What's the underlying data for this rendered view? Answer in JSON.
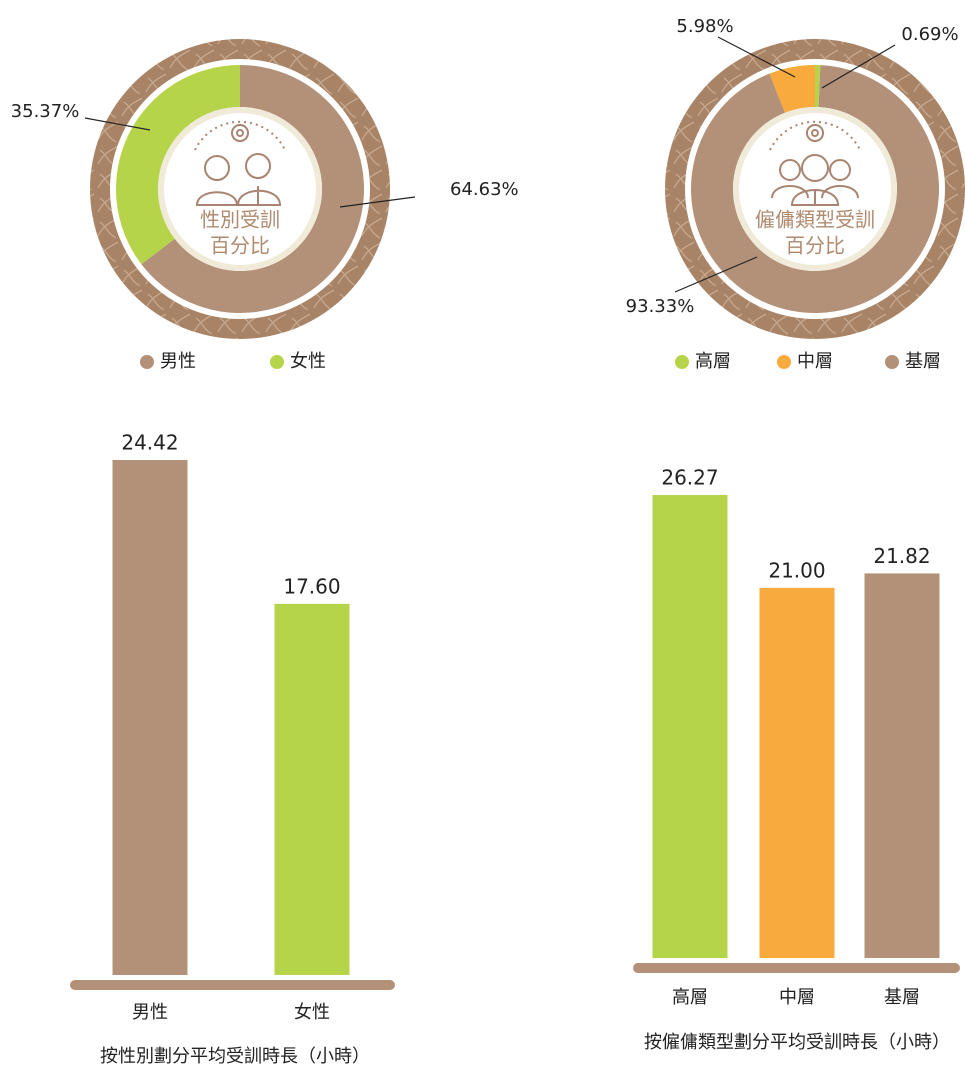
{
  "chart_data": [
    {
      "type": "pie",
      "center_label": [
        "性別受訓",
        "百分比"
      ],
      "categories": [
        "男性",
        "女性"
      ],
      "values": [
        64.63,
        35.37
      ],
      "value_labels": [
        "64.63%",
        "35.37%"
      ],
      "colors": [
        "#b39078",
        "#b5d44a"
      ]
    },
    {
      "type": "pie",
      "center_label": [
        "僱傭類型受訓",
        "百分比"
      ],
      "categories": [
        "高層",
        "中層",
        "基層"
      ],
      "values": [
        0.69,
        5.98,
        93.33
      ],
      "value_labels": [
        "0.69%",
        "5.98%",
        "93.33%"
      ],
      "colors": [
        "#b5d44a",
        "#f8ab3c",
        "#b39078"
      ]
    },
    {
      "type": "bar",
      "title": "按性別劃分平均受訓時長（小時）",
      "categories": [
        "男性",
        "女性"
      ],
      "values": [
        24.42,
        17.6
      ],
      "value_labels": [
        "24.42",
        "17.60"
      ],
      "colors": [
        "#b39078",
        "#b5d44a"
      ]
    },
    {
      "type": "bar",
      "title": "按僱傭類型劃分平均受訓時長（小時）",
      "categories": [
        "高層",
        "中層",
        "基層"
      ],
      "values": [
        26.27,
        21.0,
        21.82
      ],
      "value_labels": [
        "26.27",
        "21.00",
        "21.82"
      ],
      "colors": [
        "#b5d44a",
        "#f8ab3c",
        "#b39078"
      ]
    }
  ]
}
